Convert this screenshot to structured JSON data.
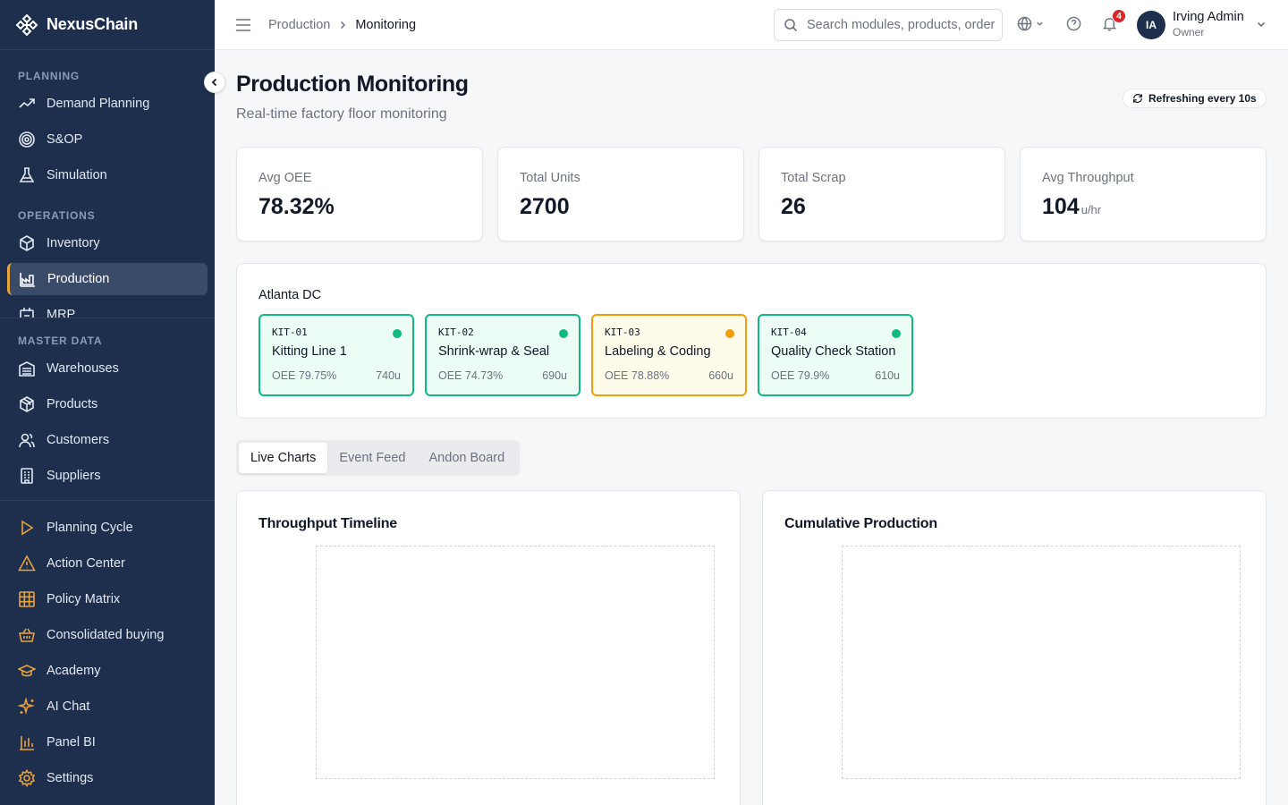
{
  "brand": {
    "name": "NexusChain"
  },
  "sidebar": {
    "planning": {
      "heading": "PLANNING",
      "items": [
        {
          "label": "Demand Planning",
          "icon": "trend-up-icon"
        },
        {
          "label": "S&OP",
          "icon": "target-icon"
        },
        {
          "label": "Simulation",
          "icon": "flask-icon"
        }
      ]
    },
    "operations": {
      "heading": "OPERATIONS",
      "items": [
        {
          "label": "Inventory",
          "icon": "box-icon"
        },
        {
          "label": "Production",
          "icon": "factory-icon",
          "active": true
        },
        {
          "label": "MRP",
          "icon": "calculator-icon"
        }
      ]
    },
    "master_data": {
      "heading": "MASTER DATA",
      "items": [
        {
          "label": "Warehouses",
          "icon": "warehouse-icon"
        },
        {
          "label": "Products",
          "icon": "package-icon"
        },
        {
          "label": "Customers",
          "icon": "users-icon"
        },
        {
          "label": "Suppliers",
          "icon": "building-icon"
        }
      ]
    },
    "tools": {
      "items": [
        {
          "label": "Planning Cycle",
          "icon": "play-icon"
        },
        {
          "label": "Action Center",
          "icon": "alert-triangle-icon"
        },
        {
          "label": "Policy Matrix",
          "icon": "grid-icon"
        },
        {
          "label": "Consolidated buying",
          "icon": "basket-icon"
        },
        {
          "label": "Academy",
          "icon": "graduation-cap-icon"
        },
        {
          "label": "AI Chat",
          "icon": "sparkles-icon"
        },
        {
          "label": "Panel BI",
          "icon": "bar-chart-icon"
        },
        {
          "label": "Settings",
          "icon": "gear-icon"
        }
      ]
    }
  },
  "topbar": {
    "breadcrumb": {
      "parent": "Production",
      "current": "Monitoring"
    },
    "search_placeholder": "Search modules, products, orders...",
    "notifications_count": "4",
    "user": {
      "initials": "IA",
      "name": "Irving Admin",
      "role": "Owner"
    }
  },
  "page": {
    "title": "Production Monitoring",
    "subtitle": "Real-time factory floor monitoring",
    "refresh_label": "Refreshing every 10s"
  },
  "kpis": [
    {
      "label": "Avg OEE",
      "value": "78.32%",
      "unit": ""
    },
    {
      "label": "Total Units",
      "value": "2700",
      "unit": ""
    },
    {
      "label": "Total Scrap",
      "value": "26",
      "unit": ""
    },
    {
      "label": "Avg Throughput",
      "value": "104",
      "unit": "u/hr"
    }
  ],
  "site": {
    "name": "Atlanta DC",
    "lines": [
      {
        "code": "KIT-01",
        "name": "Kitting Line 1",
        "oee": "OEE 79.75%",
        "units": "740u",
        "status": "running",
        "status_color": "#10b981"
      },
      {
        "code": "KIT-02",
        "name": "Shrink-wrap & Seal",
        "oee": "OEE 74.73%",
        "units": "690u",
        "status": "running",
        "status_color": "#10b981"
      },
      {
        "code": "KIT-03",
        "name": "Labeling & Coding",
        "oee": "OEE 78.88%",
        "units": "660u",
        "status": "warning",
        "status_color": "#f59e0b"
      },
      {
        "code": "KIT-04",
        "name": "Quality Check Station",
        "oee": "OEE 79.9%",
        "units": "610u",
        "status": "running",
        "status_color": "#10b981"
      }
    ]
  },
  "tabs": [
    {
      "label": "Live Charts",
      "active": true
    },
    {
      "label": "Event Feed",
      "active": false
    },
    {
      "label": "Andon Board",
      "active": false
    }
  ],
  "charts": {
    "throughput_title": "Throughput Timeline",
    "cumulative_title": "Cumulative Production"
  },
  "colors": {
    "sidebar_bg": "#1d2f4d",
    "accent": "#e8a33c",
    "running": "#10b981",
    "warning": "#f59e0b",
    "badge": "#dc2626"
  }
}
